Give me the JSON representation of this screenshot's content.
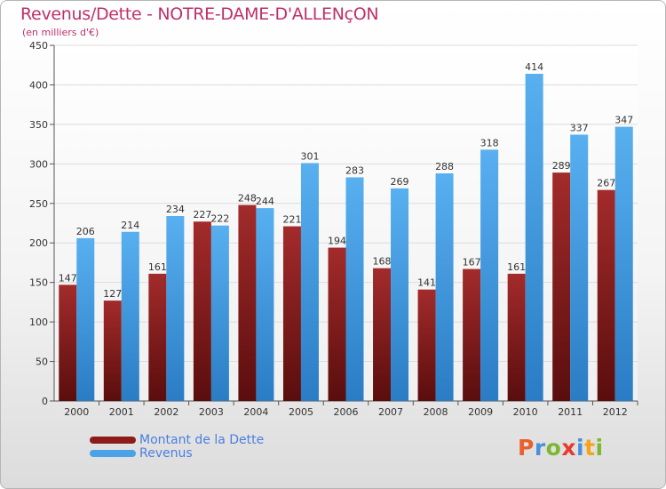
{
  "header": {
    "title": "Revenus/Dette - NOTRE-DAME-D'ALLENçON",
    "subtitle": "(en milliers d'€)"
  },
  "colors": {
    "dette": "#8e1b1b",
    "revenus": "#4aa3e8",
    "axis_text": "#333333",
    "grid": "#dcdcdc"
  },
  "chart_data": {
    "type": "bar",
    "title": "Revenus/Dette - NOTRE-DAME-D'ALLENçON",
    "subtitle": "(en milliers d'€)",
    "categories": [
      "2000",
      "2001",
      "2002",
      "2003",
      "2004",
      "2005",
      "2006",
      "2007",
      "2008",
      "2009",
      "2010",
      "2011",
      "2012"
    ],
    "series": [
      {
        "name": "Montant de la Dette",
        "values": [
          147,
          127,
          161,
          227,
          248,
          221,
          194,
          168,
          141,
          167,
          161,
          289,
          267
        ]
      },
      {
        "name": "Revenus",
        "values": [
          206,
          214,
          234,
          222,
          244,
          301,
          283,
          269,
          288,
          318,
          414,
          337,
          347
        ]
      }
    ],
    "ylim": [
      0,
      450
    ],
    "yticks": [
      0,
      50,
      100,
      150,
      200,
      250,
      300,
      350,
      400,
      450
    ],
    "grid": true,
    "legend_position": "bottom-left"
  },
  "legend": {
    "items": [
      {
        "label": "Montant de la Dette",
        "color": "#8e1b1b"
      },
      {
        "label": "Revenus",
        "color": "#4aa3e8"
      }
    ]
  },
  "logo": {
    "letters": [
      "P",
      "r",
      "o",
      "x",
      "i",
      "t",
      "i"
    ],
    "colors": [
      "#e8602c",
      "#4a90d9",
      "#7cb82f",
      "#e83a2c",
      "#4a90d9",
      "#f2a51a",
      "#7cb82f"
    ]
  }
}
